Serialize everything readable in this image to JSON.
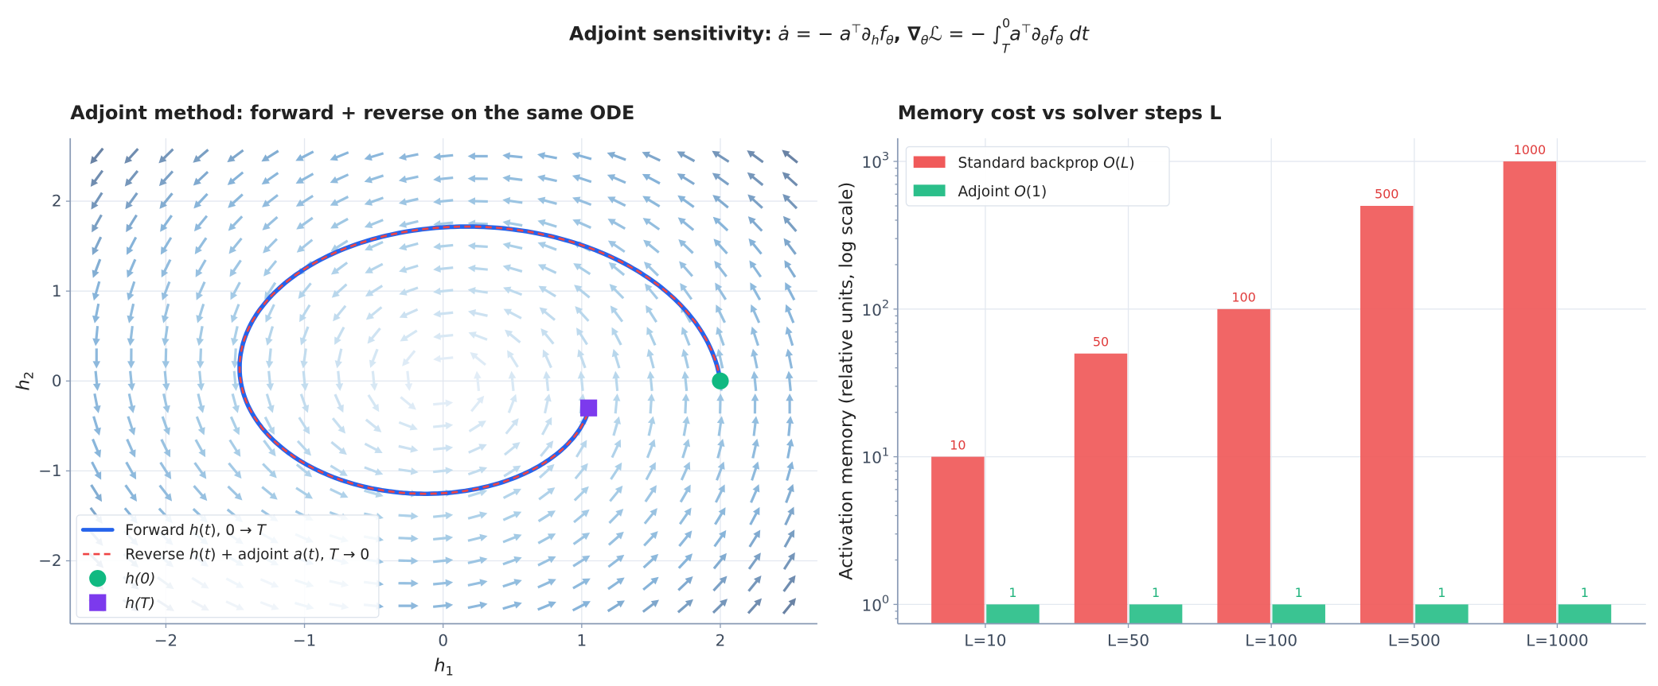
{
  "suptitle": {
    "bold": "Adjoint sensitivity:",
    "math": [
      "ȧ",
      " = − ",
      "a",
      "⊤",
      "∂",
      "h",
      "f",
      "θ",
      ",  ∇",
      "θ",
      "ℒ",
      " = − ∫",
      "0",
      "T",
      "a",
      "⊤",
      "∂",
      "θ",
      "f",
      "θ",
      " dt"
    ]
  },
  "chart_data": [
    {
      "type": "quiver",
      "title": "Adjoint method: forward + reverse on the same ODE",
      "xlabel": [
        "h",
        "1"
      ],
      "ylabel": [
        "h",
        "2"
      ],
      "xlim": [
        -2.69,
        2.7
      ],
      "ylim": [
        -2.7,
        2.7
      ],
      "xticks": [
        -2,
        -1,
        0,
        1,
        2
      ],
      "xtick_labels": [
        "−2",
        "−1",
        "0",
        "1",
        "2"
      ],
      "yticks": [
        -2,
        -1,
        0,
        1,
        2
      ],
      "ytick_labels": [
        "−2",
        "−1",
        "0",
        "1",
        "2"
      ],
      "grid": true,
      "field": {
        "grid_range": [
          -2.5,
          2.5
        ],
        "grid_n": 21,
        "rotation": "counter-clockwise",
        "damping": 0.1
      },
      "trajectory": {
        "h0": [
          2.0,
          0.0
        ],
        "hT": [
          1.05,
          -0.3
        ]
      },
      "legend": {
        "placement": "lower-left",
        "items": [
          {
            "label": "Forward h(t),  0→T",
            "parts": [
              "Forward ",
              "h",
              "(",
              "t",
              "),  0 → ",
              "T"
            ],
            "color": "#2563eb",
            "kind": "line"
          },
          {
            "label": "Reverse h(t) + adjoint a(t),  T→0",
            "parts": [
              "Reverse ",
              "h",
              "(",
              "t",
              ") + adjoint ",
              "a",
              "(",
              "t",
              "),  ",
              "T",
              " → 0"
            ],
            "color": "#ef4444",
            "kind": "dashed"
          },
          {
            "label": "h(0)",
            "parts": [
              "h",
              "(0)"
            ],
            "color": "#10b981",
            "kind": "circle"
          },
          {
            "label": "h(T)",
            "parts": [
              "h",
              "(",
              "T",
              ")"
            ],
            "color": "#7c3aed",
            "kind": "square"
          }
        ]
      }
    },
    {
      "type": "bar",
      "title": "Memory cost vs solver steps L",
      "xlabel": "",
      "ylabel": "Activation memory (relative units, log scale)",
      "yscale": "log",
      "ylim": [
        0.74,
        1435
      ],
      "yticks": [
        1,
        10,
        100,
        1000
      ],
      "ytick_labels": [
        [
          "10",
          "0"
        ],
        [
          "10",
          "1"
        ],
        [
          "10",
          "2"
        ],
        [
          "10",
          "3"
        ]
      ],
      "grid": true,
      "categories": [
        "L=10",
        "L=50",
        "L=100",
        "L=500",
        "L=1000"
      ],
      "series": [
        {
          "name": "Standard backprop  O(L)",
          "name_parts": [
            "Standard backprop  ",
            "O",
            "(",
            "L",
            ")"
          ],
          "values": [
            10,
            50,
            100,
            500,
            1000
          ],
          "labels": [
            "10",
            "50",
            "100",
            "500",
            "1000"
          ],
          "color": "#f05a5a",
          "label_color": "#e03c3c"
        },
        {
          "name": "Adjoint  O(1)",
          "name_parts": [
            "Adjoint  ",
            "O",
            "(1)"
          ],
          "values": [
            1,
            1,
            1,
            1,
            1
          ],
          "labels": [
            "1",
            "1",
            "1",
            "1",
            "1"
          ],
          "color": "#2bbf8a",
          "label_color": "#1fb37c"
        }
      ],
      "legend": {
        "placement": "top-left"
      }
    }
  ]
}
